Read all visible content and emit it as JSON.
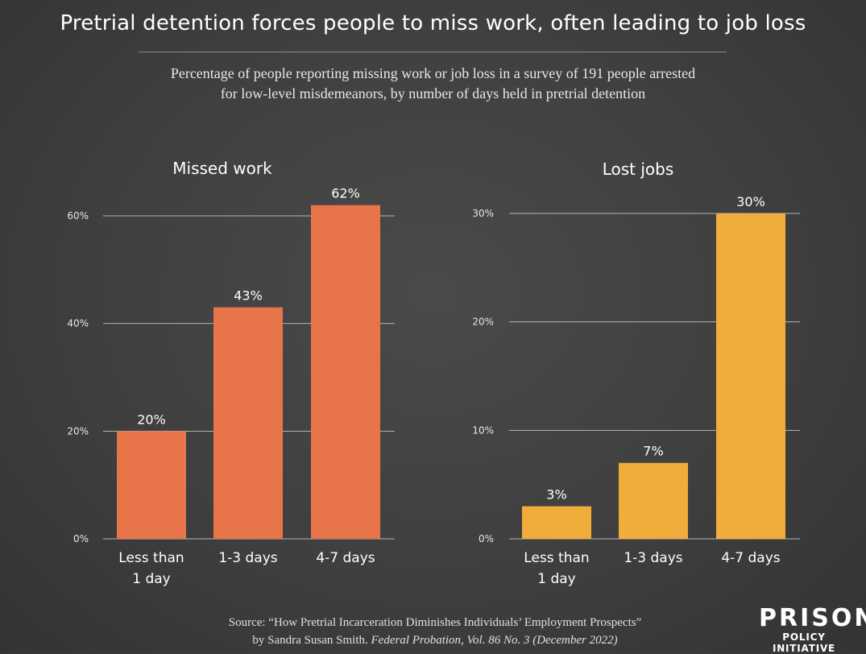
{
  "title": "Pretrial detention forces people to miss work, often leading to job loss",
  "subtitle_line1": "Percentage of people reporting missing work or job loss in a survey of 191 people arrested",
  "subtitle_line2": "for low-level misdemeanors, by number of days held in pretrial detention",
  "source_line1": "Source: “How Pretrial Incarceration Diminishes Individuals’ Employment Prospects”",
  "source_line2_plain": "by Sandra Susan Smith. ",
  "source_line2_italic": "Federal Probation, Vol. 86 No. 3 (December 2022)",
  "logo": {
    "line1": "PRISON",
    "line2": "POLICY INITIATIVE"
  },
  "chart_data": [
    {
      "type": "bar",
      "title": "Missed work",
      "categories": [
        [
          "Less than",
          "1 day"
        ],
        [
          "1-3 days"
        ],
        [
          "4-7 days"
        ]
      ],
      "values": [
        20,
        43,
        62
      ],
      "labels": [
        "20%",
        "43%",
        "62%"
      ],
      "yticks": [
        0,
        20,
        40,
        60
      ],
      "ytick_labels": [
        "0%",
        "20%",
        "40%",
        "60%"
      ],
      "ylim": [
        0,
        60
      ],
      "grid": true,
      "color": "#e8744a"
    },
    {
      "type": "bar",
      "title": "Lost jobs",
      "categories": [
        [
          "Less than",
          "1 day"
        ],
        [
          "1-3 days"
        ],
        [
          "4-7 days"
        ]
      ],
      "values": [
        3,
        7,
        30
      ],
      "labels": [
        "3%",
        "7%",
        "30%"
      ],
      "yticks": [
        0,
        10,
        20,
        30
      ],
      "ytick_labels": [
        "0%",
        "10%",
        "20%",
        "30%"
      ],
      "ylim": [
        0,
        30
      ],
      "grid": true,
      "color": "#f0ad3c"
    }
  ]
}
